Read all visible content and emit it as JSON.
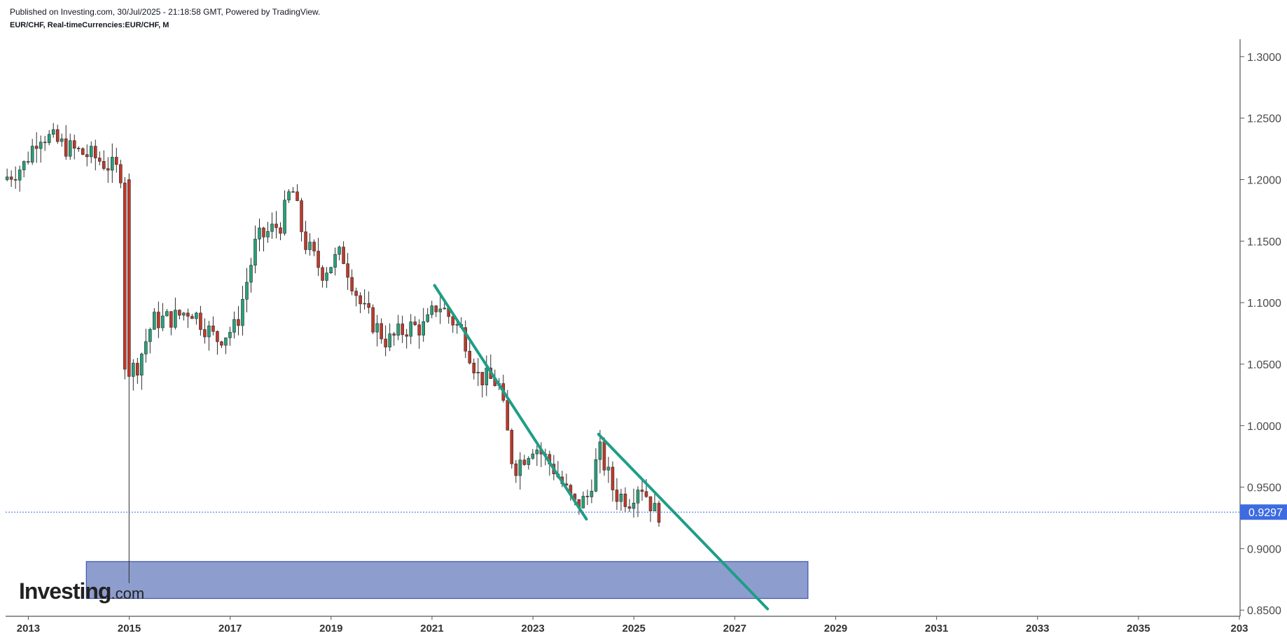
{
  "header": {
    "published": "Published on Investing.com, 30/Jul/2025 - 21:18:58 GMT, Powered by TradingView.",
    "symbol": "EUR/CHF, Real-timeCurrencies:EUR/CHF, M"
  },
  "logo": {
    "brand": "Investing",
    "suffix": ".com"
  },
  "colors": {
    "up": "#26a17b",
    "down": "#c0392b",
    "wick": "#2b2b2b",
    "trendline": "#1e9e86",
    "zone_fill": "#8d9dce",
    "zone_border": "#3d55b0",
    "price_tag": "#3d6ce0",
    "axis": "#555555"
  },
  "chart_data": {
    "type": "candlestick",
    "interval": "M",
    "ylim": [
      0.845,
      1.313
    ],
    "xlim": [
      2012.55,
      2037.0
    ],
    "y_ticks": [
      "1.3000",
      "1.2500",
      "1.2000",
      "1.1500",
      "1.1000",
      "1.0500",
      "1.0000",
      "0.9500",
      "0.9000",
      "0.8500"
    ],
    "x_ticks": [
      "2013",
      "2015",
      "2017",
      "2019",
      "2021",
      "2023",
      "2025",
      "2027",
      "2029",
      "2031",
      "2033",
      "2035",
      "203"
    ],
    "last_price": "0.9297",
    "anchors": [
      [
        2012.58,
        1.2
      ],
      [
        2013.0,
        1.212
      ],
      [
        2013.3,
        1.238
      ],
      [
        2013.9,
        1.225
      ],
      [
        2014.4,
        1.218
      ],
      [
        2014.95,
        1.205
      ],
      [
        2015.0,
        1.04
      ],
      [
        2015.25,
        1.05
      ],
      [
        2015.55,
        1.085
      ],
      [
        2016.0,
        1.088
      ],
      [
        2016.3,
        1.095
      ],
      [
        2016.8,
        1.07
      ],
      [
        2017.2,
        1.08
      ],
      [
        2017.6,
        1.15
      ],
      [
        2018.1,
        1.165
      ],
      [
        2018.3,
        1.195
      ],
      [
        2018.55,
        1.15
      ],
      [
        2018.9,
        1.125
      ],
      [
        2019.3,
        1.14
      ],
      [
        2019.7,
        1.095
      ],
      [
        2020.2,
        1.068
      ],
      [
        2020.6,
        1.08
      ],
      [
        2020.95,
        1.08
      ],
      [
        2021.2,
        1.1
      ],
      [
        2021.7,
        1.075
      ],
      [
        2022.0,
        1.04
      ],
      [
        2022.4,
        1.035
      ],
      [
        2022.7,
        0.965
      ],
      [
        2023.1,
        0.985
      ],
      [
        2023.5,
        0.965
      ],
      [
        2023.9,
        0.935
      ],
      [
        2024.15,
        0.94
      ],
      [
        2024.4,
        0.98
      ],
      [
        2024.7,
        0.945
      ],
      [
        2025.0,
        0.94
      ],
      [
        2025.2,
        0.955
      ],
      [
        2025.5,
        0.93
      ]
    ],
    "spikes": [
      {
        "date": "2015.00",
        "high": 1.205,
        "low": 0.872,
        "open": 1.2,
        "close": 1.04
      }
    ],
    "trendlines": [
      {
        "from": [
          2021.05,
          1.114
        ],
        "to": [
          2024.06,
          0.924
        ]
      },
      {
        "from": [
          2024.3,
          0.993
        ],
        "to": [
          2027.65,
          0.851
        ]
      }
    ],
    "zones": [
      {
        "x": [
          2014.15,
          2028.45
        ],
        "y": [
          0.8595,
          0.8895
        ]
      }
    ]
  }
}
